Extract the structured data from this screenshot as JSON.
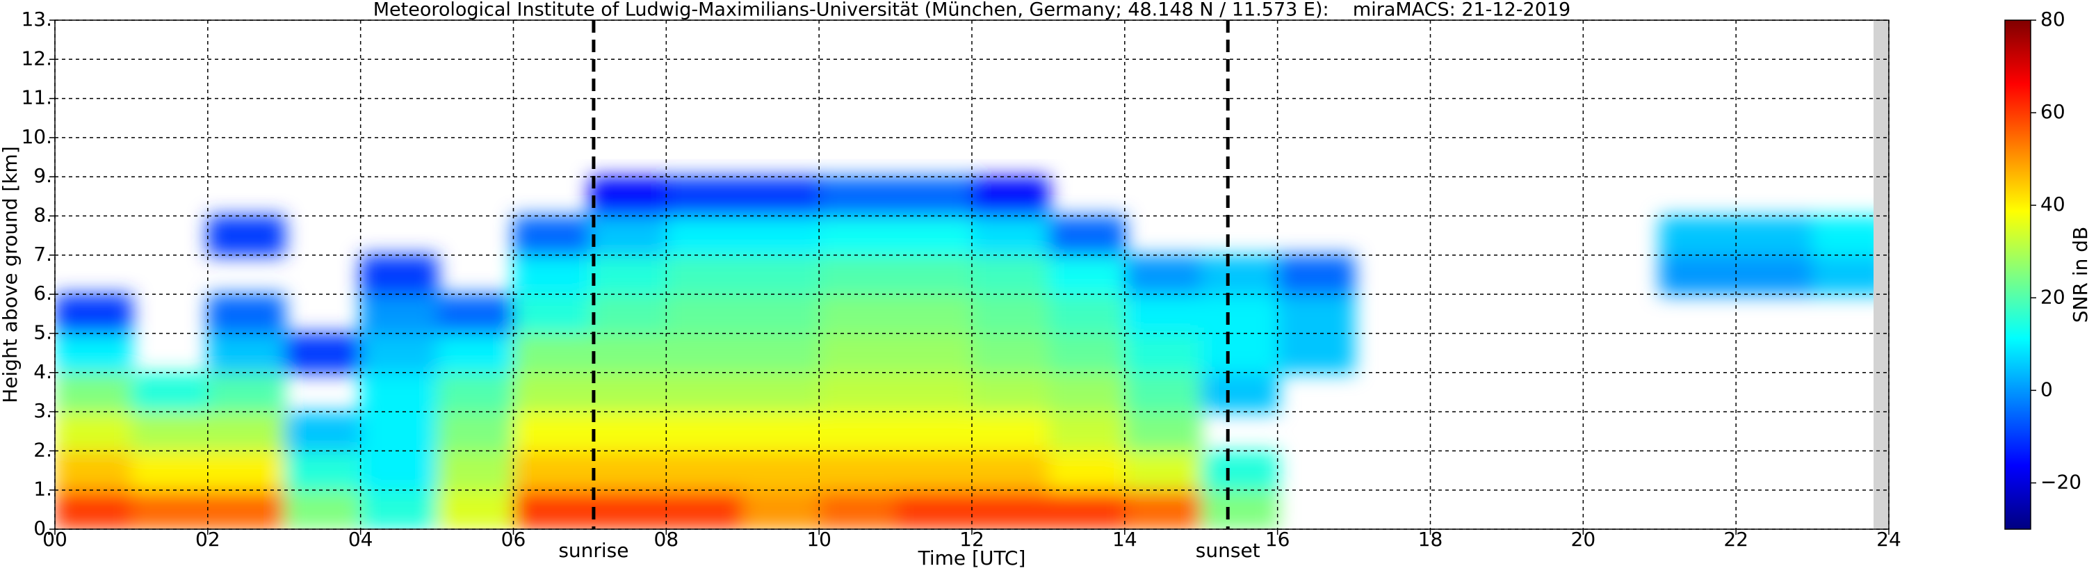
{
  "chart_data": {
    "type": "heatmap",
    "title": "Meteorological Institute of Ludwig-Maximilians-Universität (München, Germany; 48.148 N / 11.573 E):    miraMACS: 21-12-2019",
    "xlabel": "Time [UTC]",
    "ylabel": "Height above ground [km]",
    "colorbar_label": "SNR in dB",
    "colormap": "jet",
    "clim": [
      -30,
      80
    ],
    "cticks": [
      {
        "value": -20,
        "label": "−20"
      },
      0,
      20,
      40,
      60,
      80
    ],
    "xlim": [
      0,
      24
    ],
    "ylim": [
      0,
      13
    ],
    "xticks": [
      {
        "value": 0,
        "label": "00"
      },
      {
        "value": 2,
        "label": "02"
      },
      {
        "value": 4,
        "label": "04"
      },
      {
        "value": 6,
        "label": "06"
      },
      {
        "value": 8,
        "label": "08"
      },
      10,
      12,
      14,
      16,
      18,
      20,
      22,
      24
    ],
    "yticks": [
      {
        "value": 0,
        "label": "0."
      },
      {
        "value": 1,
        "label": "1."
      },
      {
        "value": 2,
        "label": "2."
      },
      {
        "value": 3,
        "label": "3."
      },
      {
        "value": 4,
        "label": "4."
      },
      {
        "value": 5,
        "label": "5."
      },
      {
        "value": 6,
        "label": "6."
      },
      {
        "value": 7,
        "label": "7."
      },
      {
        "value": 8,
        "label": "8."
      },
      {
        "value": 9,
        "label": "9."
      },
      {
        "value": 10,
        "label": "10."
      },
      {
        "value": 11,
        "label": "11."
      },
      {
        "value": 12,
        "label": "12."
      },
      {
        "value": 13,
        "label": "13."
      }
    ],
    "grid": true,
    "annotations": [
      {
        "x": 7.05,
        "label": "sunrise"
      },
      {
        "x": 15.35,
        "label": "sunset"
      }
    ],
    "no_data_from": 23.8,
    "no_data_color": "#d3d3d3",
    "x": [
      0.5,
      1.5,
      2.5,
      3.5,
      4.5,
      5.5,
      6.5,
      7.5,
      8.5,
      9.5,
      10.5,
      11.5,
      12.5,
      13.5,
      14.5,
      15.5,
      16.5,
      17.5,
      18.5,
      19.5,
      20.5,
      21.5,
      22.5,
      23.5
    ],
    "y": [
      0.5,
      1.5,
      2.5,
      3.5,
      4.5,
      5.5,
      6.5,
      7.5,
      8.5,
      9.5,
      10.5,
      11.5,
      12.5
    ],
    "values": [
      [
        60,
        55,
        55,
        25,
        15,
        35,
        60,
        60,
        60,
        50,
        55,
        60,
        60,
        60,
        55,
        25,
        null,
        null,
        null,
        null,
        null,
        null,
        null,
        null
      ],
      [
        45,
        40,
        40,
        15,
        10,
        30,
        45,
        45,
        45,
        45,
        45,
        45,
        45,
        40,
        35,
        15,
        null,
        null,
        null,
        null,
        null,
        null,
        null,
        null
      ],
      [
        35,
        30,
        30,
        5,
        10,
        25,
        38,
        38,
        38,
        38,
        38,
        38,
        38,
        33,
        25,
        null,
        null,
        null,
        null,
        null,
        null,
        null,
        null,
        null
      ],
      [
        25,
        15,
        20,
        null,
        10,
        20,
        30,
        30,
        30,
        30,
        32,
        32,
        30,
        28,
        20,
        5,
        null,
        null,
        null,
        null,
        null,
        null,
        null,
        null
      ],
      [
        10,
        null,
        5,
        -10,
        5,
        10,
        25,
        25,
        25,
        25,
        28,
        28,
        25,
        22,
        15,
        10,
        5,
        null,
        null,
        null,
        null,
        null,
        null,
        null
      ],
      [
        -10,
        null,
        -5,
        null,
        0,
        -5,
        15,
        20,
        22,
        22,
        25,
        25,
        22,
        18,
        10,
        10,
        5,
        null,
        null,
        null,
        null,
        null,
        null,
        null
      ],
      [
        null,
        null,
        null,
        null,
        -10,
        null,
        10,
        15,
        18,
        18,
        20,
        20,
        18,
        12,
        0,
        5,
        -5,
        null,
        null,
        null,
        null,
        0,
        0,
        5
      ],
      [
        null,
        null,
        -10,
        null,
        null,
        null,
        -5,
        5,
        10,
        10,
        12,
        12,
        8,
        -5,
        null,
        null,
        null,
        null,
        null,
        null,
        null,
        5,
        5,
        10
      ],
      [
        null,
        null,
        null,
        null,
        null,
        null,
        null,
        -15,
        -10,
        -10,
        -5,
        -5,
        -15,
        null,
        null,
        null,
        null,
        null,
        null,
        null,
        null,
        null,
        null,
        null
      ],
      [
        null,
        null,
        null,
        null,
        null,
        null,
        null,
        null,
        null,
        null,
        null,
        null,
        null,
        null,
        null,
        null,
        null,
        null,
        null,
        null,
        null,
        null,
        null,
        null
      ],
      [
        null,
        null,
        null,
        null,
        null,
        null,
        null,
        null,
        null,
        null,
        null,
        null,
        null,
        null,
        null,
        null,
        null,
        null,
        null,
        null,
        null,
        null,
        null,
        null
      ],
      [
        null,
        null,
        null,
        null,
        null,
        null,
        null,
        null,
        null,
        null,
        null,
        null,
        null,
        null,
        null,
        null,
        null,
        null,
        null,
        null,
        null,
        null,
        null,
        null
      ],
      [
        null,
        null,
        null,
        null,
        null,
        null,
        null,
        null,
        null,
        null,
        null,
        null,
        null,
        null,
        null,
        null,
        null,
        null,
        null,
        null,
        null,
        null,
        null,
        null
      ]
    ]
  }
}
